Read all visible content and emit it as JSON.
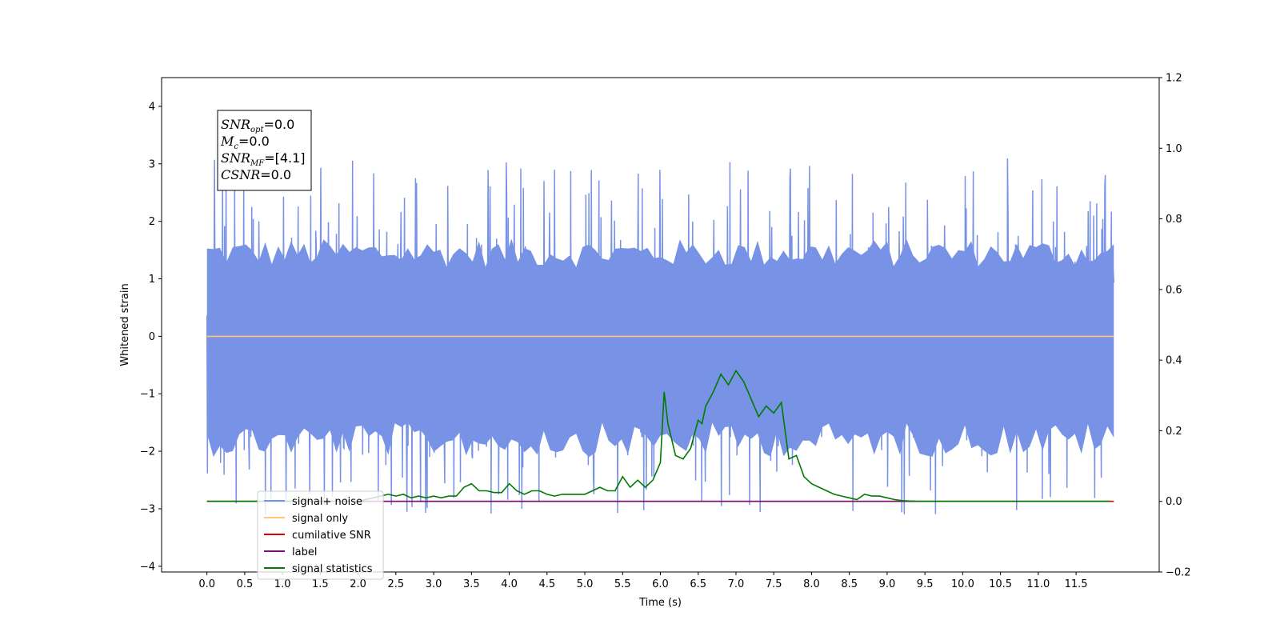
{
  "chart_data": {
    "type": "line",
    "title": "",
    "xlabel": "Time (s)",
    "ylabel": "Whitened strain",
    "ylabel_right": "",
    "xlim": [
      -0.6,
      12.6
    ],
    "ylim": [
      -4.1,
      4.5
    ],
    "ylim_right": [
      -0.2,
      1.2
    ],
    "x_ticks": [
      0.0,
      0.5,
      1.0,
      1.5,
      2.0,
      2.5,
      3.0,
      3.5,
      4.0,
      4.5,
      5.0,
      5.5,
      6.0,
      6.5,
      7.0,
      7.5,
      8.0,
      8.5,
      9.0,
      9.5,
      10.0,
      10.5,
      11.0,
      11.5
    ],
    "x_tick_labels": [
      "0.0",
      "0.5",
      "1.0",
      "1.5",
      "2.0",
      "2.5",
      "3.0",
      "3.5",
      "4.0",
      "4.5",
      "5.0",
      "5.5",
      "6.0",
      "6.5",
      "7.0",
      "7.5",
      "8.0",
      "8.5",
      "9.0",
      "9.5",
      "10.0",
      "10.5",
      "11.0",
      "11.5"
    ],
    "y_ticks": [
      4,
      3,
      2,
      1,
      0,
      -1,
      -2,
      -3,
      -4
    ],
    "y_tick_labels": [
      "4",
      "3",
      "2",
      "1",
      "0",
      "−1",
      "−2",
      "−3",
      "−4"
    ],
    "y_right_ticks": [
      1.2,
      1.0,
      0.8,
      0.6,
      0.4,
      0.2,
      0.0,
      -0.2
    ],
    "y_right_tick_labels": [
      "1.2",
      "1.0",
      "0.8",
      "0.6",
      "0.4",
      "0.2",
      "0.0",
      "−0.2"
    ],
    "grid": false,
    "legend_position": "lower-left",
    "annotation": {
      "lines": [
        {
          "base": "SNR",
          "sub": "opt",
          "rest": "=0.0"
        },
        {
          "base": "M",
          "sub": "c",
          "rest": "=0.0"
        },
        {
          "base": "SNR",
          "sub": "MF",
          "rest": "=[4.1]"
        },
        {
          "base": "CSNR",
          "sub": "",
          "rest": "=0.0"
        }
      ]
    },
    "series": [
      {
        "name": "signal+ noise",
        "color": "#7893e6",
        "axis": "left",
        "style": "noise",
        "noise_extent": {
          "x_start": 0.0,
          "x_end": 12.0,
          "upper": 1.2,
          "lower": -1.5
        }
      },
      {
        "name": "signal only",
        "color": "#ffc870",
        "axis": "left",
        "x": [
          0.0,
          12.0
        ],
        "y": [
          0.0,
          0.0
        ]
      },
      {
        "name": "cumilative SNR",
        "color": "#e00000",
        "axis": "right",
        "x": [
          0.0,
          12.0
        ],
        "y": [
          0.0,
          0.0
        ]
      },
      {
        "name": "label",
        "color": "#7b107b",
        "axis": "right",
        "x": [
          0.0,
          11.95
        ],
        "y": [
          0.0,
          0.0
        ]
      },
      {
        "name": "signal statistics",
        "color": "#007a00",
        "axis": "right",
        "x": [
          0.0,
          2.0,
          2.2,
          2.4,
          2.5,
          2.6,
          2.7,
          2.8,
          2.9,
          3.0,
          3.1,
          3.2,
          3.3,
          3.4,
          3.5,
          3.6,
          3.7,
          3.8,
          3.9,
          4.0,
          4.1,
          4.2,
          4.3,
          4.4,
          4.5,
          4.6,
          4.7,
          4.8,
          4.9,
          5.0,
          5.1,
          5.2,
          5.3,
          5.4,
          5.5,
          5.6,
          5.7,
          5.8,
          5.9,
          6.0,
          6.05,
          6.1,
          6.2,
          6.3,
          6.4,
          6.5,
          6.55,
          6.6,
          6.7,
          6.8,
          6.9,
          7.0,
          7.1,
          7.2,
          7.3,
          7.4,
          7.5,
          7.6,
          7.7,
          7.8,
          7.9,
          8.0,
          8.1,
          8.2,
          8.3,
          8.4,
          8.5,
          8.6,
          8.7,
          8.8,
          8.9,
          9.0,
          9.1,
          9.2,
          9.3,
          9.4,
          9.5,
          10.0,
          11.0,
          11.95
        ],
        "y": [
          0.0,
          0.0,
          0.01,
          0.02,
          0.015,
          0.02,
          0.01,
          0.015,
          0.01,
          0.015,
          0.01,
          0.015,
          0.015,
          0.04,
          0.05,
          0.03,
          0.03,
          0.025,
          0.025,
          0.05,
          0.03,
          0.02,
          0.03,
          0.03,
          0.02,
          0.015,
          0.02,
          0.02,
          0.02,
          0.02,
          0.03,
          0.04,
          0.03,
          0.03,
          0.07,
          0.04,
          0.06,
          0.04,
          0.06,
          0.11,
          0.31,
          0.22,
          0.13,
          0.12,
          0.15,
          0.23,
          0.22,
          0.27,
          0.31,
          0.36,
          0.33,
          0.37,
          0.34,
          0.29,
          0.24,
          0.27,
          0.25,
          0.28,
          0.12,
          0.13,
          0.07,
          0.05,
          0.04,
          0.03,
          0.02,
          0.015,
          0.01,
          0.005,
          0.02,
          0.015,
          0.015,
          0.01,
          0.005,
          0.002,
          0.001,
          0.0,
          0.0,
          0.0,
          0.0,
          0.0
        ]
      }
    ]
  }
}
